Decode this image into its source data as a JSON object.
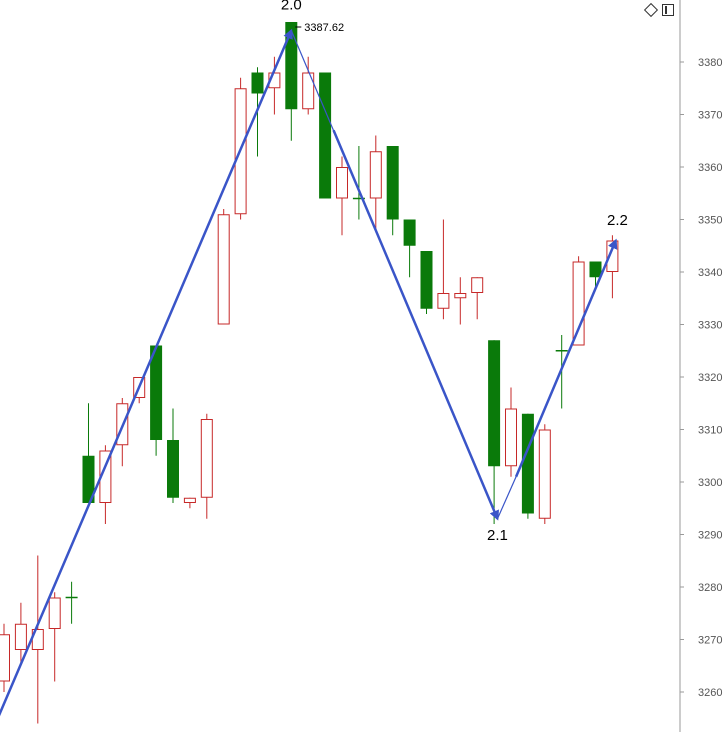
{
  "chart_data": {
    "type": "candlestick",
    "y_axis": {
      "side": "right",
      "ylim": [
        3254,
        3392
      ],
      "ticks": [
        3260,
        3270,
        3280,
        3290,
        3300,
        3310,
        3320,
        3330,
        3340,
        3350,
        3360,
        3370,
        3380
      ]
    },
    "colors": {
      "up": "#c62828",
      "down": "#0a7a0a",
      "wave": "#3a55c8",
      "axis": "#9a9a9a"
    },
    "candles": [
      {
        "open": 3262,
        "high": 3273,
        "low": 3260,
        "close": 3271
      },
      {
        "open": 3268,
        "high": 3277,
        "low": 3265,
        "close": 3273
      },
      {
        "open": 3268,
        "high": 3286,
        "low": 3254,
        "close": 3272
      },
      {
        "open": 3272,
        "high": 3279,
        "low": 3262,
        "close": 3278
      },
      {
        "open": 3278,
        "high": 3281,
        "low": 3273,
        "close": 3278
      },
      {
        "open": 3305,
        "high": 3315,
        "low": 3296,
        "close": 3296
      },
      {
        "open": 3296,
        "high": 3307,
        "low": 3292,
        "close": 3306
      },
      {
        "open": 3307,
        "high": 3316,
        "low": 3303,
        "close": 3315
      },
      {
        "open": 3316,
        "high": 3320,
        "low": 3315,
        "close": 3320
      },
      {
        "open": 3326,
        "high": 3326,
        "low": 3305,
        "close": 3308
      },
      {
        "open": 3308,
        "high": 3314,
        "low": 3296,
        "close": 3297
      },
      {
        "open": 3296,
        "high": 3297,
        "low": 3295,
        "close": 3297
      },
      {
        "open": 3297,
        "high": 3313,
        "low": 3293,
        "close": 3312
      },
      {
        "open": 3330,
        "high": 3352,
        "low": 3330,
        "close": 3351
      },
      {
        "open": 3351,
        "high": 3377,
        "low": 3350,
        "close": 3375
      },
      {
        "open": 3378,
        "high": 3379,
        "low": 3362,
        "close": 3374
      },
      {
        "open": 3375,
        "high": 3381,
        "low": 3370,
        "close": 3378
      },
      {
        "open": 3387.62,
        "high": 3387.62,
        "low": 3365,
        "close": 3371
      },
      {
        "open": 3371,
        "high": 3381,
        "low": 3370,
        "close": 3378
      },
      {
        "open": 3378,
        "high": 3378,
        "low": 3354,
        "close": 3354
      },
      {
        "open": 3354,
        "high": 3362,
        "low": 3347,
        "close": 3360
      },
      {
        "open": 3354,
        "high": 3364,
        "low": 3350,
        "close": 3354
      },
      {
        "open": 3354,
        "high": 3366,
        "low": 3348,
        "close": 3363
      },
      {
        "open": 3364,
        "high": 3364,
        "low": 3347,
        "close": 3350
      },
      {
        "open": 3350,
        "high": 3350,
        "low": 3339,
        "close": 3345
      },
      {
        "open": 3344,
        "high": 3344,
        "low": 3332,
        "close": 3333
      },
      {
        "open": 3333,
        "high": 3350,
        "low": 3331,
        "close": 3336
      },
      {
        "open": 3335,
        "high": 3339,
        "low": 3330,
        "close": 3336
      },
      {
        "open": 3336,
        "high": 3339,
        "low": 3331,
        "close": 3339
      },
      {
        "open": 3327,
        "high": 3327,
        "low": 3292,
        "close": 3303
      },
      {
        "open": 3303,
        "high": 3318,
        "low": 3301,
        "close": 3314
      },
      {
        "open": 3313,
        "high": 3313,
        "low": 3293,
        "close": 3294
      },
      {
        "open": 3293,
        "high": 3311,
        "low": 3292,
        "close": 3310
      },
      {
        "open": 3325,
        "high": 3328,
        "low": 3314,
        "close": 3325
      },
      {
        "open": 3326,
        "high": 3343,
        "low": 3326,
        "close": 3342
      },
      {
        "open": 3342,
        "high": 3342,
        "low": 3337,
        "close": 3339
      },
      {
        "open": 3340,
        "high": 3347,
        "low": 3335,
        "close": 3346
      }
    ],
    "high_marker": {
      "text": "3387.62",
      "candle": 17
    },
    "wave_lines": [
      {
        "from": {
          "candle": -0.5,
          "price": 3254
        },
        "to": {
          "candle": 17,
          "price": 3386
        },
        "arrow": true,
        "width": 2.5
      },
      {
        "from": {
          "candle": 17,
          "price": 3386
        },
        "to": {
          "candle": 29.2,
          "price": 3293
        },
        "arrow": false,
        "width": 1.2
      },
      {
        "from": {
          "candle": 19.5,
          "price": 3367
        },
        "to": {
          "candle": 29.2,
          "price": 3293
        },
        "arrow": true,
        "width": 2.5
      },
      {
        "from": {
          "candle": 29.2,
          "price": 3293
        },
        "to": {
          "candle": 30.3,
          "price": 3301
        },
        "arrow": false,
        "width": 1.2
      },
      {
        "from": {
          "candle": 30.3,
          "price": 3301
        },
        "to": {
          "candle": 36.2,
          "price": 3346
        },
        "arrow": true,
        "width": 2.5
      }
    ],
    "wave_labels": [
      {
        "text": "2.0",
        "candle": 17,
        "price": 3390
      },
      {
        "text": "2.1",
        "candle": 29.2,
        "price": 3289
      },
      {
        "text": "2.2",
        "candle": 36.3,
        "price": 3349
      }
    ]
  }
}
